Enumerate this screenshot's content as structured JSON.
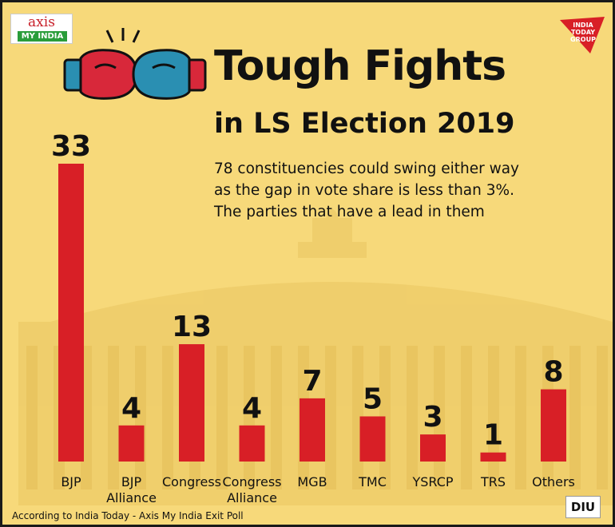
{
  "header": {
    "title_line1": "Tough Fights",
    "title_line2": "in LS Election 2019",
    "subtitle_lines": [
      "78 constituencies could swing either way",
      "as the gap in vote share is less than 3%.",
      "The parties that have a lead in them"
    ]
  },
  "logos": {
    "axis_top": "axis",
    "axis_bottom": "MY INDIA",
    "india_today": "INDIA TODAY GROUP",
    "diu": "DIU"
  },
  "footer": {
    "source": "According to India Today - Axis My India Exit Poll"
  },
  "colors": {
    "background": "#f7d97a",
    "bar": "#d81f26",
    "text": "#111111",
    "glove_red": "#d8283a",
    "glove_blue": "#2a8fb2"
  },
  "chart_data": {
    "type": "bar",
    "title": "Tough Fights in LS Election 2019",
    "categories": [
      "BJP",
      "BJP Alliance",
      "Congress",
      "Congress Alliance",
      "MGB",
      "TMC",
      "YSRCP",
      "TRS",
      "Others"
    ],
    "category_lines": [
      [
        "BJP"
      ],
      [
        "BJP",
        "Alliance"
      ],
      [
        "Congress"
      ],
      [
        "Congress",
        "Alliance"
      ],
      [
        "MGB"
      ],
      [
        "TMC"
      ],
      [
        "YSRCP"
      ],
      [
        "TRS"
      ],
      [
        "Others"
      ]
    ],
    "values": [
      33,
      4,
      13,
      4,
      7,
      5,
      3,
      1,
      8
    ],
    "ylim": [
      0,
      33
    ],
    "grid": false,
    "legend": "none",
    "data_labels": true
  }
}
